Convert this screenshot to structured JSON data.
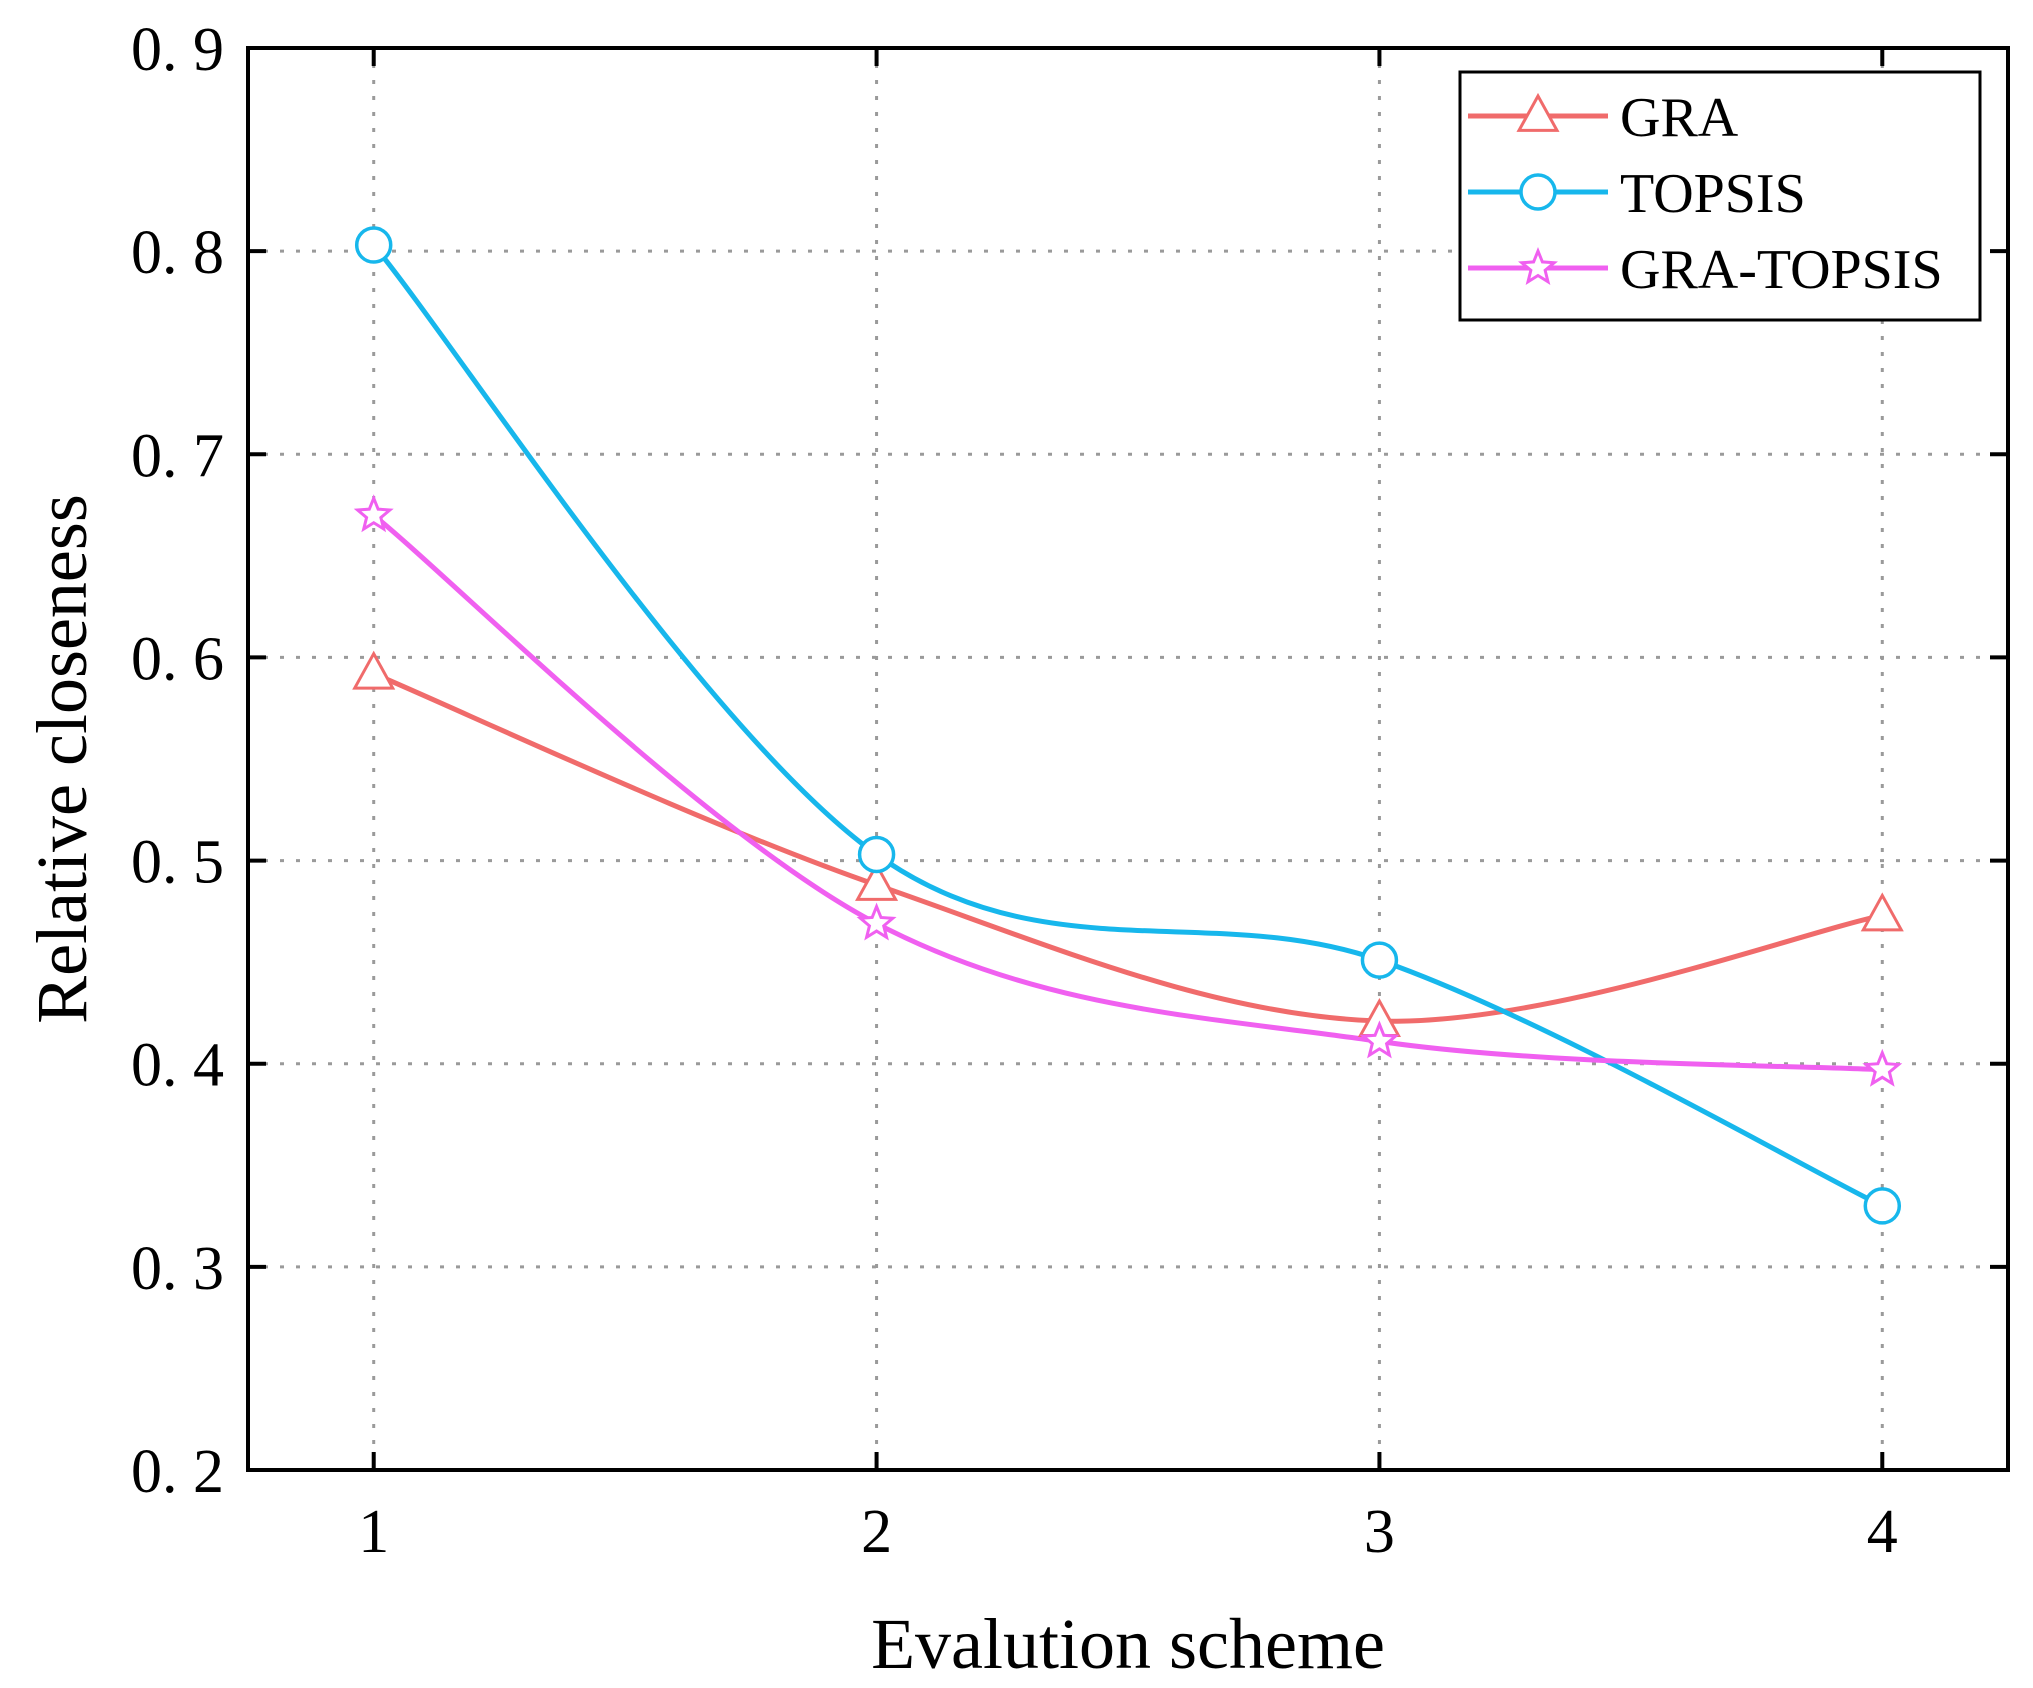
{
  "chart_data": {
    "type": "line",
    "title": "",
    "xlabel": "Evalution scheme",
    "ylabel": "Relative closeness",
    "x": [
      1,
      2,
      3,
      4
    ],
    "xticks": [
      "1",
      "2",
      "3",
      "4"
    ],
    "xlim": [
      0.75,
      4.25
    ],
    "ylim": [
      0.2,
      0.9
    ],
    "yticks": [
      "0. 2",
      "0. 3",
      "0. 4",
      "0. 5",
      "0. 6",
      "0. 7",
      "0. 8",
      "0. 9"
    ],
    "ytick_values": [
      0.2,
      0.3,
      0.4,
      0.5,
      0.6,
      0.7,
      0.8,
      0.9
    ],
    "grid": true,
    "grid_style": "dotted",
    "legend_position": "top-right",
    "smooth": true,
    "series": [
      {
        "name": "GRA",
        "values": [
          0.592,
          0.488,
          0.421,
          0.473
        ],
        "color": "#f06b6b",
        "marker": "triangle"
      },
      {
        "name": "TOPSIS",
        "values": [
          0.803,
          0.503,
          0.451,
          0.33
        ],
        "color": "#17b7ec",
        "marker": "circle"
      },
      {
        "name": "GRA-TOPSIS",
        "values": [
          0.67,
          0.469,
          0.411,
          0.397
        ],
        "color": "#f060f0",
        "marker": "star"
      }
    ]
  }
}
